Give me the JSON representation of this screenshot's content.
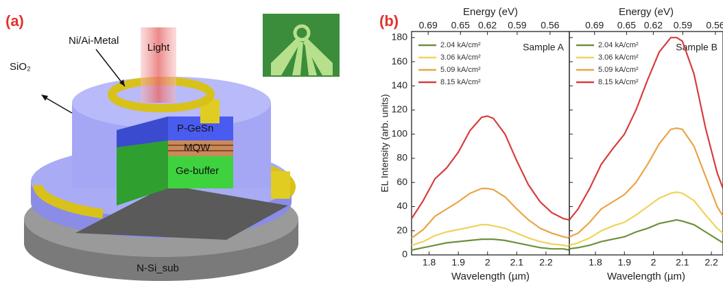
{
  "panel_a": {
    "label": "(a)",
    "light": "Light",
    "metal": "Ni/Ai-Metal",
    "oxide": "SiO₂",
    "p_layer": "P-GeSn",
    "mqw": "MQW",
    "buffer": "Ge-buffer",
    "substrate": "N-Si_sub"
  },
  "panel_b": {
    "label": "(b)"
  },
  "chart_data": [
    {
      "type": "line",
      "annotation": "Sample A",
      "xlabel": "Wavelength (µm)",
      "ylabel": "EL Intensity (arb. units)",
      "x2label": "Energy (eV)",
      "x": [
        1.74,
        1.78,
        1.82,
        1.86,
        1.9,
        1.94,
        1.98,
        2.0,
        2.02,
        2.06,
        2.1,
        2.14,
        2.18,
        2.22,
        2.26,
        2.28
      ],
      "series": [
        {
          "name": "2.04 kA/cm²",
          "color": "#6e8f3c",
          "values": [
            4,
            6,
            8,
            10,
            11,
            12,
            13,
            13,
            13,
            12,
            10,
            8,
            6,
            5,
            5,
            4
          ]
        },
        {
          "name": "3.06 kA/cm²",
          "color": "#f0d25a",
          "values": [
            8,
            11,
            16,
            19,
            21,
            23,
            25,
            25,
            24,
            22,
            18,
            14,
            11,
            9,
            8,
            7
          ]
        },
        {
          "name": "5.09 kA/cm²",
          "color": "#e9a444",
          "values": [
            14,
            21,
            32,
            38,
            44,
            51,
            55,
            55,
            54,
            48,
            38,
            29,
            22,
            18,
            15,
            14
          ]
        },
        {
          "name": "8.15 kA/cm²",
          "color": "#d93b3b",
          "values": [
            30,
            45,
            63,
            72,
            85,
            103,
            114,
            115,
            113,
            100,
            78,
            58,
            44,
            35,
            30,
            29
          ]
        }
      ],
      "xlim": [
        1.74,
        2.28
      ],
      "xticks": [
        1.8,
        1.9,
        2.0,
        2.1,
        2.2
      ],
      "ylim": [
        0,
        185
      ],
      "yticks": [
        0,
        20,
        40,
        60,
        80,
        100,
        120,
        140,
        160,
        180
      ],
      "x2ticks": [
        0.69,
        0.65,
        0.62,
        0.59,
        0.56
      ]
    },
    {
      "type": "line",
      "annotation": "Sample B",
      "xlabel": "Wavelength (µm)",
      "x2label": "Energy (eV)",
      "x": [
        1.71,
        1.74,
        1.78,
        1.82,
        1.86,
        1.9,
        1.94,
        1.98,
        2.02,
        2.06,
        2.08,
        2.1,
        2.14,
        2.18,
        2.22,
        2.24
      ],
      "series": [
        {
          "name": "2.04 kA/cm²",
          "color": "#6e8f3c",
          "values": [
            5,
            6,
            8,
            11,
            13,
            15,
            19,
            22,
            26,
            28,
            29,
            28,
            25,
            19,
            13,
            10
          ]
        },
        {
          "name": "3.06 kA/cm²",
          "color": "#f0d25a",
          "values": [
            8,
            10,
            14,
            20,
            24,
            27,
            33,
            40,
            47,
            51,
            52,
            51,
            45,
            33,
            22,
            18
          ]
        },
        {
          "name": "5.09 kA/cm²",
          "color": "#e9a444",
          "values": [
            15,
            18,
            27,
            38,
            44,
            50,
            60,
            75,
            92,
            104,
            105,
            104,
            90,
            65,
            40,
            32
          ]
        },
        {
          "name": "8.15 kA/cm²",
          "color": "#d93b3b",
          "values": [
            29,
            38,
            55,
            75,
            88,
            100,
            120,
            145,
            168,
            180,
            180,
            177,
            150,
            105,
            68,
            55
          ]
        }
      ],
      "xlim": [
        1.71,
        2.24
      ],
      "xticks": [
        1.8,
        1.9,
        2.0,
        2.1,
        2.2
      ],
      "ylim": [
        0,
        185
      ],
      "yticks": [
        0,
        20,
        40,
        60,
        80,
        100,
        120,
        140,
        160,
        180
      ],
      "x2ticks": [
        0.69,
        0.65,
        0.62,
        0.59,
        0.56
      ]
    }
  ]
}
